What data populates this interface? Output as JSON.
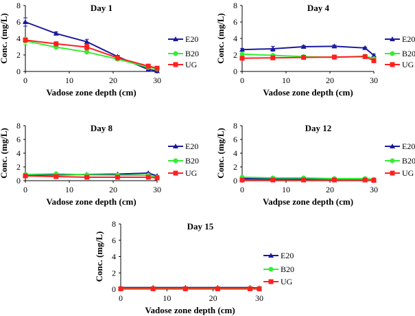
{
  "chart_data": [
    {
      "type": "line",
      "title": "Day 1",
      "xlabel": "Vadose zone depth (cm)",
      "ylabel": "Conc. (mg/L)",
      "xlim": [
        0,
        30
      ],
      "ylim": [
        0,
        8
      ],
      "xticks": [
        0,
        10,
        20,
        30
      ],
      "yticks": [
        0,
        2,
        4,
        6,
        8
      ],
      "legend": "right",
      "x": [
        0,
        7,
        14,
        21,
        28,
        30
      ],
      "series": [
        {
          "name": "E20",
          "color": "#1a1a9c",
          "marker": "triangle",
          "values": [
            6.0,
            4.6,
            3.6,
            1.8,
            0.25,
            0.05
          ],
          "errors": [
            0.5,
            0.2,
            0.3,
            0.15,
            0.1,
            0.05
          ]
        },
        {
          "name": "B20",
          "color": "#33ee33",
          "marker": "circle",
          "values": [
            3.7,
            2.95,
            2.35,
            1.5,
            0.5,
            0.3
          ],
          "errors": [
            0.45,
            0.15,
            0.15,
            0.15,
            0.1,
            0.1
          ]
        },
        {
          "name": "UG",
          "color": "#ff2020",
          "marker": "square",
          "values": [
            3.8,
            3.35,
            2.95,
            1.65,
            0.65,
            0.4
          ],
          "errors": [
            0.2,
            0.25,
            0.35,
            0.25,
            0.15,
            0.1
          ]
        }
      ]
    },
    {
      "type": "line",
      "title": "Day 4",
      "xlabel": "Vadose zone depth (cm)",
      "ylabel": "Conc. (mg/L)",
      "xlim": [
        0,
        30
      ],
      "ylim": [
        0,
        8
      ],
      "xticks": [
        0,
        10,
        20,
        30
      ],
      "yticks": [
        0,
        2,
        4,
        6,
        8
      ],
      "legend": "right",
      "x": [
        0,
        7,
        14,
        21,
        28,
        30
      ],
      "series": [
        {
          "name": "E20",
          "color": "#1a1a9c",
          "marker": "triangle",
          "values": [
            2.65,
            2.75,
            3.0,
            3.05,
            2.85,
            1.95
          ],
          "errors": [
            0.15,
            0.3,
            0.15,
            0.15,
            0.1,
            0.15
          ]
        },
        {
          "name": "B20",
          "color": "#33ee33",
          "marker": "circle",
          "values": [
            2.1,
            1.95,
            1.8,
            1.7,
            1.85,
            1.55
          ],
          "errors": [
            0.1,
            0.1,
            0.1,
            0.1,
            0.1,
            0.1
          ]
        },
        {
          "name": "UG",
          "color": "#ff2020",
          "marker": "square",
          "values": [
            1.6,
            1.65,
            1.7,
            1.75,
            1.8,
            1.3
          ],
          "errors": [
            0.1,
            0.1,
            0.1,
            0.1,
            0.1,
            0.1
          ]
        }
      ]
    },
    {
      "type": "line",
      "title": "Day 8",
      "xlabel": "Vadose zone depth (cm)",
      "ylabel": "Conc. (mg/L)",
      "xlim": [
        0,
        30
      ],
      "ylim": [
        0,
        8
      ],
      "xticks": [
        0,
        10,
        20,
        30
      ],
      "yticks": [
        0,
        2,
        4,
        6,
        8
      ],
      "legend": "right",
      "x": [
        0,
        7,
        14,
        21,
        28,
        30
      ],
      "series": [
        {
          "name": "E20",
          "color": "#1a1a9c",
          "marker": "triangle",
          "values": [
            0.85,
            0.85,
            0.9,
            0.95,
            1.1,
            0.7
          ],
          "errors": [
            0.05,
            0.05,
            0.05,
            0.05,
            0.1,
            0.05
          ]
        },
        {
          "name": "B20",
          "color": "#33ee33",
          "marker": "circle",
          "values": [
            0.9,
            1.0,
            0.85,
            0.8,
            0.8,
            0.5
          ],
          "errors": [
            0.05,
            0.1,
            0.05,
            0.05,
            0.05,
            0.05
          ]
        },
        {
          "name": "UG",
          "color": "#ff2020",
          "marker": "square",
          "values": [
            0.7,
            0.6,
            0.5,
            0.5,
            0.5,
            0.4
          ],
          "errors": [
            0.05,
            0.05,
            0.05,
            0.05,
            0.05,
            0.05
          ]
        }
      ]
    },
    {
      "type": "line",
      "title": "Day 12",
      "xlabel": "Vadpse zone depth (cm)",
      "ylabel": "Conc. (mg/L)",
      "xlim": [
        0,
        30
      ],
      "ylim": [
        0,
        8
      ],
      "xticks": [
        0,
        10,
        20,
        30
      ],
      "yticks": [
        0,
        2,
        4,
        6,
        8
      ],
      "legend": "right",
      "x": [
        0,
        7,
        14,
        21,
        28,
        30
      ],
      "series": [
        {
          "name": "E20",
          "color": "#1a1a9c",
          "marker": "triangle",
          "values": [
            0.3,
            0.3,
            0.3,
            0.3,
            0.3,
            0.1
          ],
          "errors": [
            0.03,
            0.03,
            0.03,
            0.03,
            0.03,
            0.03
          ]
        },
        {
          "name": "B20",
          "color": "#33ee33",
          "marker": "circle",
          "values": [
            0.5,
            0.4,
            0.4,
            0.3,
            0.3,
            0.2
          ],
          "errors": [
            0.03,
            0.03,
            0.03,
            0.03,
            0.03,
            0.03
          ]
        },
        {
          "name": "UG",
          "color": "#ff2020",
          "marker": "square",
          "values": [
            0.1,
            0.1,
            0.1,
            0.1,
            0.1,
            0.05
          ],
          "errors": [
            0.02,
            0.02,
            0.02,
            0.02,
            0.02,
            0.02
          ]
        }
      ]
    },
    {
      "type": "line",
      "title": "Day 15",
      "xlabel": "Vadose zone depth (cm)",
      "ylabel": "Conc. (mg/L)",
      "xlim": [
        0,
        30
      ],
      "ylim": [
        0,
        8
      ],
      "xticks": [
        0,
        10,
        20,
        30
      ],
      "yticks": [
        0,
        2,
        4,
        6,
        8
      ],
      "legend": "right",
      "x": [
        0,
        7,
        14,
        21,
        28,
        30
      ],
      "series": [
        {
          "name": "E20",
          "color": "#1a1a9c",
          "marker": "triangle",
          "values": [
            0.2,
            0.2,
            0.2,
            0.2,
            0.2,
            0.15
          ],
          "errors": [
            0.02,
            0.02,
            0.02,
            0.02,
            0.02,
            0.02
          ]
        },
        {
          "name": "B20",
          "color": "#33ee33",
          "marker": "circle",
          "values": [
            0.1,
            0.1,
            0.1,
            0.1,
            0.1,
            0.1
          ],
          "errors": [
            0.02,
            0.02,
            0.02,
            0.02,
            0.02,
            0.02
          ]
        },
        {
          "name": "UG",
          "color": "#ff2020",
          "marker": "square",
          "values": [
            0.05,
            0.05,
            0.05,
            0.05,
            0.05,
            0.05
          ],
          "errors": [
            0.02,
            0.02,
            0.02,
            0.02,
            0.02,
            0.02
          ]
        }
      ]
    }
  ]
}
